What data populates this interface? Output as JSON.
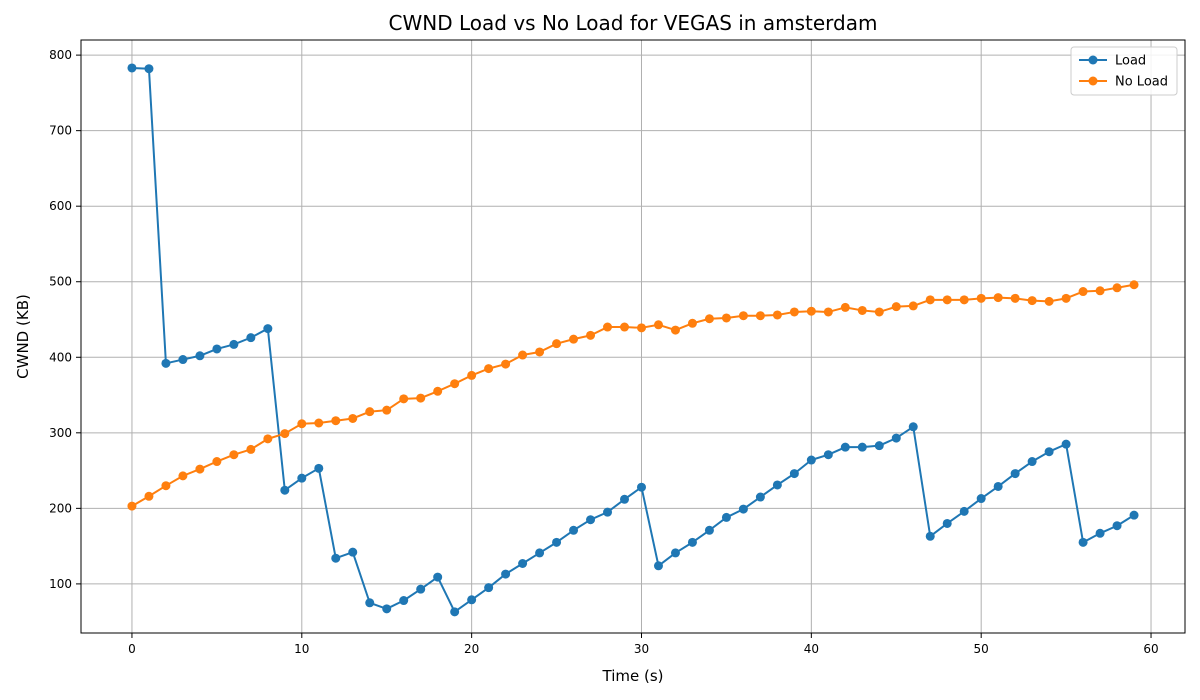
{
  "chart_data": {
    "type": "line",
    "title": "CWND Load vs No Load for VEGAS in amsterdam",
    "xlabel": "Time (s)",
    "ylabel": "CWND (KB)",
    "xlim": [
      -3,
      62
    ],
    "ylim": [
      35,
      820
    ],
    "xticks": [
      0,
      10,
      20,
      30,
      40,
      50,
      60
    ],
    "yticks": [
      100,
      200,
      300,
      400,
      500,
      600,
      700,
      800
    ],
    "grid": true,
    "legend_position": "top-right",
    "x": [
      0,
      1,
      2,
      3,
      4,
      5,
      6,
      7,
      8,
      9,
      10,
      11,
      12,
      13,
      14,
      15,
      16,
      17,
      18,
      19,
      20,
      21,
      22,
      23,
      24,
      25,
      26,
      27,
      28,
      29,
      30,
      31,
      32,
      33,
      34,
      35,
      36,
      37,
      38,
      39,
      40,
      41,
      42,
      43,
      44,
      45,
      46,
      47,
      48,
      49,
      50,
      51,
      52,
      53,
      54,
      55,
      56,
      57,
      58,
      59
    ],
    "series": [
      {
        "name": "Load",
        "color": "#1f77b4",
        "values": [
          783,
          782,
          392,
          397,
          402,
          411,
          417,
          426,
          438,
          224,
          240,
          253,
          134,
          142,
          75,
          67,
          78,
          93,
          109,
          63,
          79,
          95,
          113,
          127,
          141,
          155,
          171,
          185,
          195,
          212,
          228,
          124,
          141,
          155,
          171,
          188,
          199,
          215,
          231,
          246,
          264,
          271,
          281,
          281,
          283,
          293,
          308,
          163,
          180,
          196,
          213,
          229,
          246,
          262,
          275,
          285,
          155,
          167,
          177,
          191
        ]
      },
      {
        "name": "No Load",
        "color": "#ff7f0e",
        "values": [
          203,
          216,
          230,
          243,
          252,
          262,
          271,
          278,
          292,
          299,
          312,
          313,
          316,
          319,
          328,
          330,
          345,
          346,
          355,
          365,
          376,
          385,
          391,
          403,
          407,
          418,
          424,
          429,
          440,
          440,
          439,
          443,
          436,
          445,
          451,
          452,
          455,
          455,
          456,
          460,
          461,
          460,
          466,
          462,
          460,
          467,
          468,
          476,
          476,
          476,
          478,
          479,
          478,
          475,
          474,
          478,
          487,
          488,
          492,
          496
        ]
      }
    ]
  }
}
